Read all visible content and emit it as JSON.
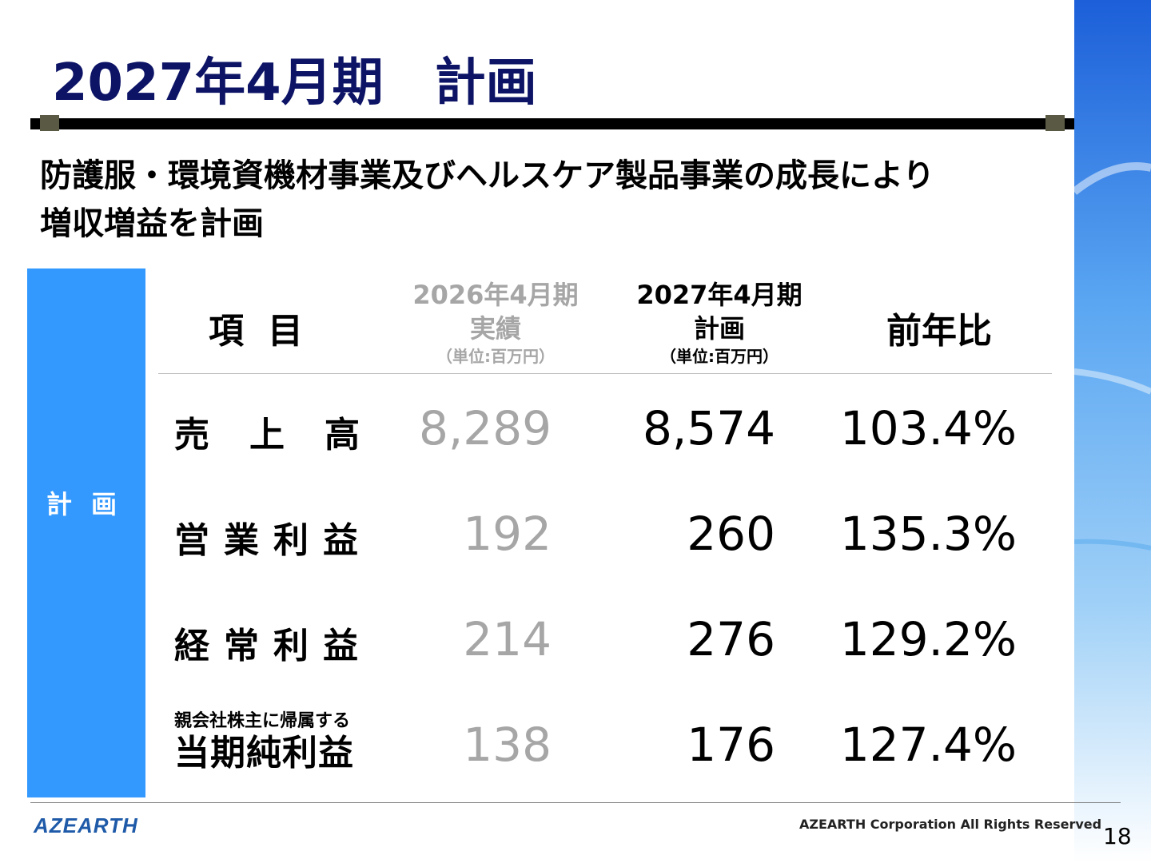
{
  "header": {
    "title": "2027年4月期　計画",
    "subtitle_line1": "防護服・環境資機材事業及びヘルスケア製品事業の成長により",
    "subtitle_line2": "増収増益を計画"
  },
  "side_label": "計画",
  "table": {
    "col_item": "項目",
    "col_prev_line1": "2026年4月期",
    "col_prev_line2": "実績",
    "col_prev_unit": "（単位:百万円）",
    "col_plan_line1": "2027年4月期",
    "col_plan_line2": "計画",
    "col_plan_unit": "（単位:百万円）",
    "col_yoy": "前年比",
    "rows": [
      {
        "label": "売上高",
        "prev": "8,289",
        "plan": "8,574",
        "yoy": "103.4%"
      },
      {
        "label": "営業利益",
        "prev": "192",
        "plan": "260",
        "yoy": "135.3%"
      },
      {
        "label": "経常利益",
        "prev": "214",
        "plan": "276",
        "yoy": "129.2%"
      },
      {
        "label_small": "親会社株主に帰属する",
        "label": "当期純利益",
        "prev": "138",
        "plan": "176",
        "yoy": "127.4%"
      }
    ]
  },
  "footer": {
    "logo": "AZEARTH",
    "copyright": "AZEARTH Corporation All Rights Reserved",
    "page_number": "18"
  },
  "colors": {
    "title": "#0d1466",
    "side_band": "#3399ff",
    "prev_values": "#a6a6a6",
    "logo": "#1e5aa8"
  }
}
